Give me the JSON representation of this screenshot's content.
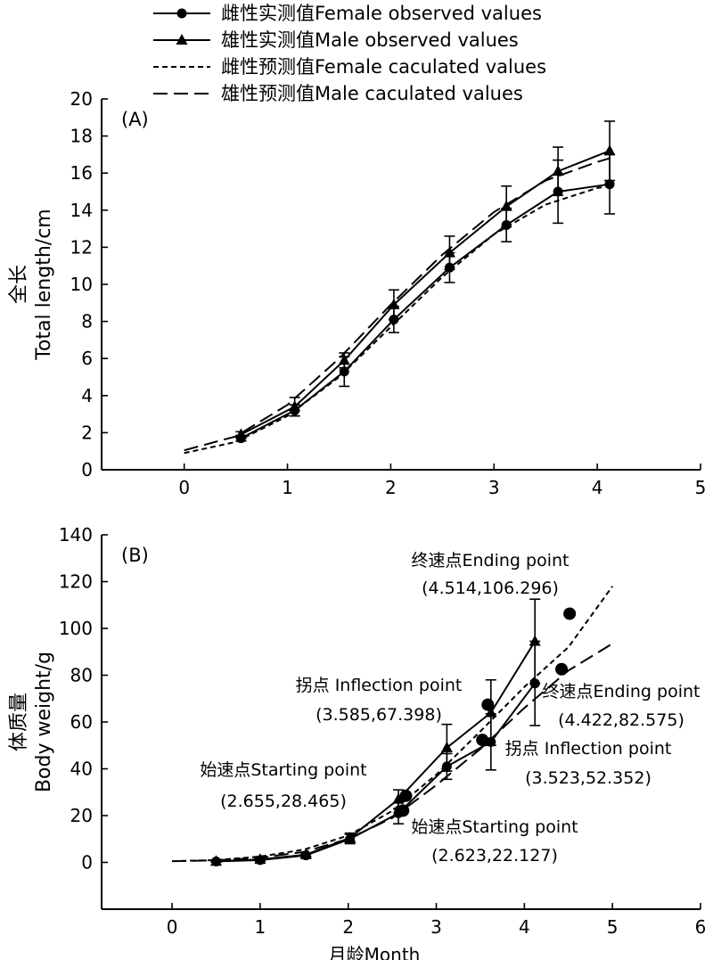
{
  "legend": [
    {
      "label": "雌性实测值Female observed values",
      "marker": "circle",
      "line": "solid"
    },
    {
      "label": "雄性实测值Male observed values",
      "marker": "triangle",
      "line": "solid"
    },
    {
      "label": "雌性预测值Female caculated values",
      "marker": "none",
      "line": "short-dash"
    },
    {
      "label": "雄性预测值Male caculated values",
      "marker": "none",
      "line": "long-dash"
    }
  ],
  "chart_data": [
    {
      "type": "line",
      "panel_label": "(A)",
      "xlabel": "",
      "ylabel": "全长",
      "ylabel_en": "Total length/cm",
      "xlim": [
        -0.8,
        5
      ],
      "ylim": [
        0,
        20
      ],
      "x_ticks": [
        0,
        1,
        2,
        3,
        4,
        5
      ],
      "y_ticks": [
        0,
        2,
        4,
        6,
        8,
        10,
        12,
        14,
        16,
        18,
        20
      ],
      "grid": false,
      "legend_position": "top",
      "series": [
        {
          "name": "雌性实测值Female observed values",
          "marker": "circle",
          "x": [
            0.55,
            1.07,
            1.55,
            2.03,
            2.57,
            3.12,
            3.62,
            4.12
          ],
          "y": [
            1.7,
            3.2,
            5.3,
            8.1,
            10.9,
            13.2,
            15.0,
            15.4
          ],
          "err": [
            0.15,
            0.3,
            0.8,
            0.7,
            0.8,
            0.9,
            1.7,
            1.6
          ]
        },
        {
          "name": "雄性实测值Male observed values",
          "marker": "triangle",
          "x": [
            0.55,
            1.07,
            1.55,
            2.03,
            2.57,
            3.12,
            3.62,
            4.12
          ],
          "y": [
            1.9,
            3.4,
            5.9,
            8.9,
            11.7,
            14.2,
            16.1,
            17.2
          ],
          "err": [
            0.15,
            0.5,
            0.4,
            0.8,
            0.9,
            1.1,
            1.3,
            1.6
          ]
        },
        {
          "name": "雌性预测值Female caculated values",
          "dash": "short",
          "x": [
            0,
            0.5,
            1,
            1.5,
            2,
            2.5,
            3,
            3.5,
            4,
            4.12
          ],
          "y": [
            0.9,
            1.5,
            2.9,
            5.0,
            7.7,
            10.4,
            12.7,
            14.3,
            15.2,
            15.3
          ]
        },
        {
          "name": "雄性预测值Male caculated values",
          "dash": "long",
          "x": [
            0,
            0.5,
            1,
            1.5,
            2,
            2.5,
            3,
            3.5,
            4,
            4.12
          ],
          "y": [
            1.05,
            1.8,
            3.5,
            6.0,
            8.9,
            11.6,
            13.9,
            15.6,
            16.6,
            16.8
          ]
        }
      ]
    },
    {
      "type": "line",
      "panel_label": "(B)",
      "xlabel": "月龄Month",
      "ylabel": "体质量",
      "ylabel_en": "Body weight/g",
      "xlim": [
        -0.8,
        6
      ],
      "ylim": [
        -20,
        140
      ],
      "x_ticks": [
        0,
        1,
        2,
        3,
        4,
        5,
        6
      ],
      "y_ticks": [
        0,
        20,
        40,
        60,
        80,
        100,
        120,
        140
      ],
      "grid": false,
      "series": [
        {
          "name": "雌性实测值Female observed values",
          "marker": "circle",
          "x": [
            0.5,
            1.0,
            1.52,
            2.02,
            2.57,
            3.12,
            3.62,
            4.12
          ],
          "y": [
            0.4,
            1.0,
            3.0,
            10.0,
            21.0,
            41.0,
            51.5,
            76.5
          ],
          "err": [
            0.3,
            0.5,
            0.8,
            2.0,
            4.5,
            5.5,
            12.0,
            18.0
          ]
        },
        {
          "name": "雄性实测值Male observed values",
          "marker": "triangle",
          "x": [
            0.5,
            1.0,
            1.52,
            2.02,
            2.57,
            3.12,
            3.62,
            4.12
          ],
          "y": [
            0.5,
            1.3,
            3.3,
            10.5,
            27.0,
            49.0,
            64.0,
            94.5
          ],
          "err": [
            0.3,
            0.5,
            0.8,
            2.0,
            4.0,
            10.0,
            14.0,
            18.0
          ]
        },
        {
          "name": "雌性预测值Female caculated values",
          "dash": "short",
          "x": [
            0,
            0.5,
            1,
            1.5,
            2,
            2.5,
            3,
            3.5,
            4,
            4.5,
            5
          ],
          "y": [
            0.5,
            1.0,
            2.5,
            5.5,
            11.5,
            22.0,
            37.5,
            56.0,
            75.0,
            92.0,
            118.0
          ]
        },
        {
          "name": "雄性预测值Male caculated values",
          "dash": "long",
          "x": [
            0,
            0.5,
            1,
            1.5,
            2,
            2.5,
            3,
            3.5,
            4,
            4.5,
            5
          ],
          "y": [
            0.5,
            0.9,
            2.0,
            4.5,
            10.0,
            19.0,
            33.0,
            48.5,
            66.0,
            82.0,
            93.5
          ]
        }
      ],
      "key_points": [
        {
          "x": 2.655,
          "y": 28.465,
          "label": "始速点Starting point",
          "coords": "(2.655,28.465)"
        },
        {
          "x": 3.585,
          "y": 67.398,
          "label": "拐点 Inflection point",
          "coords": "(3.585,67.398)"
        },
        {
          "x": 4.514,
          "y": 106.296,
          "label": "终速点Ending point",
          "coords": "(4.514,106.296)"
        },
        {
          "x": 2.623,
          "y": 22.127,
          "label": "始速点Starting point",
          "coords": "(2.623,22.127)"
        },
        {
          "x": 3.523,
          "y": 52.352,
          "label": "拐点 Inflection point",
          "coords": "(3.523,52.352)"
        },
        {
          "x": 4.422,
          "y": 82.575,
          "label": "终速点Ending point",
          "coords": "(4.422,82.575)"
        }
      ]
    }
  ]
}
